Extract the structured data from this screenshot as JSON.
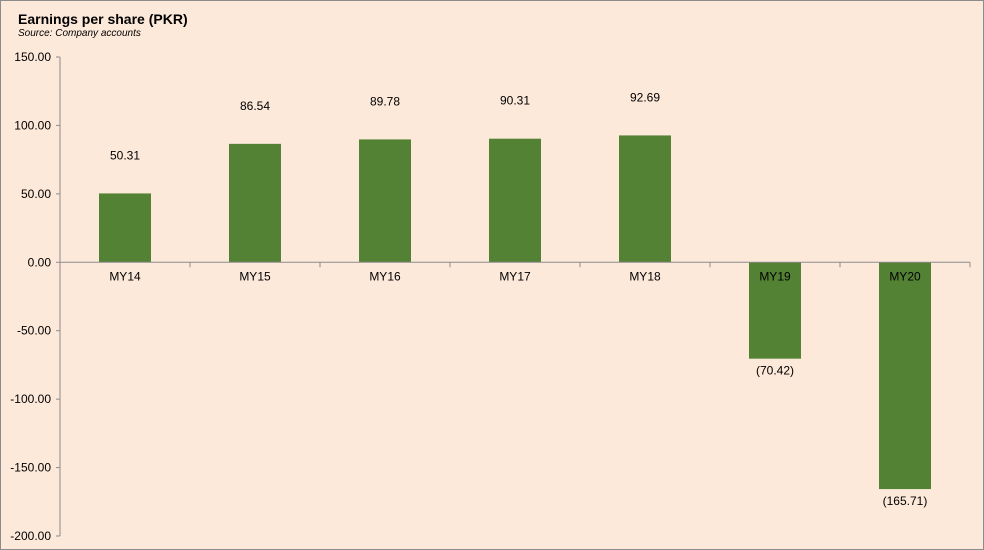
{
  "chart_data": {
    "type": "bar",
    "title": "Earnings per share (PKR)",
    "subtitle": "Source: Company accounts",
    "categories": [
      "MY14",
      "MY15",
      "MY16",
      "MY17",
      "MY18",
      "MY19",
      "MY20"
    ],
    "values": [
      50.31,
      86.54,
      89.78,
      90.31,
      92.69,
      -70.42,
      -165.71
    ],
    "data_labels": [
      "50.31",
      "86.54",
      "89.78",
      "90.31",
      "92.69",
      "(70.42)",
      "(165.71)"
    ],
    "y_ticks": [
      150,
      100,
      50,
      0,
      -50,
      -100,
      -150,
      -200
    ],
    "y_tick_labels": [
      "150.00",
      "100.00",
      "50.00",
      "0.00",
      "-50.00",
      "-100.00",
      "-150.00",
      "-200.00"
    ],
    "ylim": [
      -200,
      150
    ],
    "xlabel": "",
    "ylabel": "",
    "grid": false,
    "legend": "none",
    "colors": {
      "bar": "#548235",
      "background": "#fde9da",
      "axis": "#8c8c8c",
      "text": "#000000"
    }
  }
}
